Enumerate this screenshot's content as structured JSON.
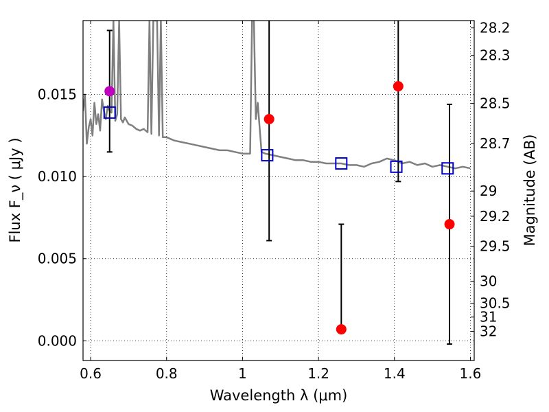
{
  "chart_data": {
    "type": "scatter",
    "xlabel": "Wavelength  λ (μm)",
    "ylabel": "Flux  F_ν  ( μJy )",
    "ylabel_right": "Magnitude (AB)",
    "xlim": [
      0.58,
      1.61
    ],
    "ylim": [
      -0.0012,
      0.0195
    ],
    "grid": true,
    "x_ticks": [
      {
        "value": 0.6,
        "label": "0.6"
      },
      {
        "value": 0.8,
        "label": "0.8"
      },
      {
        "value": 1.0,
        "label": "1"
      },
      {
        "value": 1.2,
        "label": "1.2"
      },
      {
        "value": 1.4,
        "label": "1.4"
      },
      {
        "value": 1.6,
        "label": "1.6"
      }
    ],
    "y_ticks": [
      {
        "value": 0.0,
        "label": "0.000"
      },
      {
        "value": 0.005,
        "label": "0.005"
      },
      {
        "value": 0.01,
        "label": "0.010"
      },
      {
        "value": 0.015,
        "label": "0.015"
      }
    ],
    "mag_ticks": [
      {
        "mag": 28.2,
        "label": "28.2"
      },
      {
        "mag": 28.3,
        "label": "28.3"
      },
      {
        "mag": 28.5,
        "label": "28.5"
      },
      {
        "mag": 28.7,
        "label": "28.7"
      },
      {
        "mag": 29,
        "label": "29"
      },
      {
        "mag": 29.2,
        "label": "29.2"
      },
      {
        "mag": 29.5,
        "label": "29.5"
      },
      {
        "mag": 30,
        "label": "30"
      },
      {
        "mag": 30.5,
        "label": "30.5"
      },
      {
        "mag": 31,
        "label": "31"
      },
      {
        "mag": 32,
        "label": "32"
      }
    ],
    "colors": {
      "model": "#7f7f7f",
      "observed": "#ff0000",
      "observed_special": "#bf00bf",
      "synthetic": "#0000cc",
      "errorbar": "#000000"
    },
    "model_spectrum": {
      "x": [
        0.58,
        0.585,
        0.59,
        0.595,
        0.6,
        0.605,
        0.61,
        0.615,
        0.62,
        0.625,
        0.63,
        0.635,
        0.64,
        0.645,
        0.65,
        0.655,
        0.66,
        0.665,
        0.67,
        0.675,
        0.68,
        0.685,
        0.69,
        0.7,
        0.71,
        0.72,
        0.73,
        0.74,
        0.75,
        0.755,
        0.76,
        0.765,
        0.77,
        0.775,
        0.78,
        0.785,
        0.79,
        0.8,
        0.82,
        0.84,
        0.86,
        0.88,
        0.9,
        0.92,
        0.94,
        0.96,
        0.98,
        1.0,
        1.02,
        1.025,
        1.03,
        1.035,
        1.04,
        1.045,
        1.05,
        1.06,
        1.08,
        1.1,
        1.12,
        1.14,
        1.16,
        1.18,
        1.2,
        1.22,
        1.24,
        1.26,
        1.28,
        1.3,
        1.32,
        1.34,
        1.36,
        1.38,
        1.4,
        1.42,
        1.44,
        1.46,
        1.48,
        1.5,
        1.52,
        1.54,
        1.56,
        1.58,
        1.6
      ],
      "y": [
        0.014,
        0.015,
        0.012,
        0.013,
        0.0135,
        0.0125,
        0.0145,
        0.0132,
        0.0138,
        0.0128,
        0.0147,
        0.014,
        0.0135,
        0.0143,
        0.014,
        0.0139,
        0.0195,
        0.0134,
        0.0138,
        0.0195,
        0.0135,
        0.0133,
        0.0136,
        0.0132,
        0.0131,
        0.0129,
        0.0128,
        0.0129,
        0.0127,
        0.0195,
        0.0126,
        0.0195,
        0.0195,
        0.0195,
        0.0125,
        0.0195,
        0.0124,
        0.0124,
        0.0122,
        0.0121,
        0.012,
        0.0119,
        0.0118,
        0.0117,
        0.0116,
        0.0116,
        0.0115,
        0.0114,
        0.0114,
        0.0195,
        0.0195,
        0.0135,
        0.0145,
        0.013,
        0.0115,
        0.0114,
        0.0113,
        0.0112,
        0.0111,
        0.011,
        0.011,
        0.0109,
        0.0109,
        0.0108,
        0.0108,
        0.0108,
        0.0107,
        0.0107,
        0.0106,
        0.0108,
        0.0109,
        0.0111,
        0.011,
        0.0108,
        0.0109,
        0.0107,
        0.0108,
        0.0106,
        0.0107,
        0.0106,
        0.0105,
        0.0106,
        0.0105
      ]
    },
    "observed": [
      {
        "x": 0.65,
        "y": 0.0152,
        "yerr_lo": 0.0037,
        "yerr_hi": 0.0037,
        "special": true
      },
      {
        "x": 1.07,
        "y": 0.0135,
        "yerr_lo": 0.0074,
        "yerr_hi": 0.0074,
        "special": false
      },
      {
        "x": 1.26,
        "y": 0.0007,
        "yerr_lo": 0.0,
        "yerr_hi": 0.0064,
        "special": false
      },
      {
        "x": 1.41,
        "y": 0.0155,
        "yerr_lo": 0.0058,
        "yerr_hi": 0.0058,
        "special": false
      },
      {
        "x": 1.545,
        "y": 0.0071,
        "yerr_lo": 0.0073,
        "yerr_hi": 0.0073,
        "special": false
      }
    ],
    "synthetic": [
      {
        "x": 0.65,
        "y": 0.0139
      },
      {
        "x": 1.065,
        "y": 0.0113
      },
      {
        "x": 1.26,
        "y": 0.0108
      },
      {
        "x": 1.405,
        "y": 0.0106
      },
      {
        "x": 1.54,
        "y": 0.0105
      }
    ]
  }
}
